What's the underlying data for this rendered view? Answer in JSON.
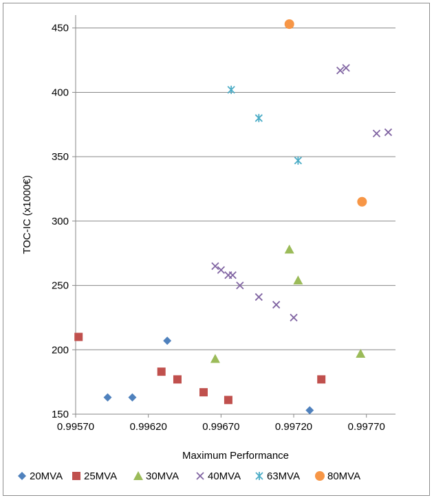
{
  "chart_data": {
    "type": "scatter",
    "title": "",
    "xlabel": "Maximum Performance",
    "ylabel": "TOC-IC (x1000€)",
    "xlim": [
      0.9957,
      0.9979
    ],
    "ylim": [
      150,
      460
    ],
    "x_ticks": [
      "0.99570",
      "0.99620",
      "0.99670",
      "0.99720",
      "0.99770"
    ],
    "y_ticks": [
      "150",
      "200",
      "250",
      "300",
      "350",
      "400",
      "450"
    ],
    "grid": "horizontal",
    "legend_position": "bottom",
    "series": [
      {
        "name": "20MVA",
        "marker": "diamond",
        "color": "#4f81bd",
        "points": [
          [
            0.99592,
            163
          ],
          [
            0.99609,
            163
          ],
          [
            0.99633,
            207
          ],
          [
            0.99731,
            153
          ]
        ]
      },
      {
        "name": "25MVA",
        "marker": "square",
        "color": "#c0504d",
        "points": [
          [
            0.99572,
            210
          ],
          [
            0.99629,
            183
          ],
          [
            0.9964,
            177
          ],
          [
            0.99658,
            167
          ],
          [
            0.99675,
            161
          ],
          [
            0.99739,
            177
          ]
        ]
      },
      {
        "name": "30MVA",
        "marker": "triangle",
        "color": "#9bbb59",
        "points": [
          [
            0.99666,
            193
          ],
          [
            0.99717,
            278
          ],
          [
            0.99723,
            254
          ],
          [
            0.99766,
            197
          ]
        ]
      },
      {
        "name": "40MVA",
        "marker": "x",
        "color": "#8064a2",
        "points": [
          [
            0.99666,
            265
          ],
          [
            0.9967,
            262
          ],
          [
            0.99675,
            258
          ],
          [
            0.99678,
            258
          ],
          [
            0.99683,
            250
          ],
          [
            0.99696,
            241
          ],
          [
            0.99708,
            235
          ],
          [
            0.9972,
            225
          ],
          [
            0.99752,
            417
          ],
          [
            0.99756,
            419
          ],
          [
            0.99777,
            368
          ],
          [
            0.99785,
            369
          ]
        ]
      },
      {
        "name": "63MVA",
        "marker": "star",
        "color": "#4bacc6",
        "points": [
          [
            0.99677,
            402
          ],
          [
            0.99696,
            380
          ],
          [
            0.99723,
            347
          ]
        ]
      },
      {
        "name": "80MVA",
        "marker": "circle",
        "color": "#f79646",
        "points": [
          [
            0.99717,
            453
          ],
          [
            0.99767,
            315
          ]
        ]
      }
    ]
  }
}
